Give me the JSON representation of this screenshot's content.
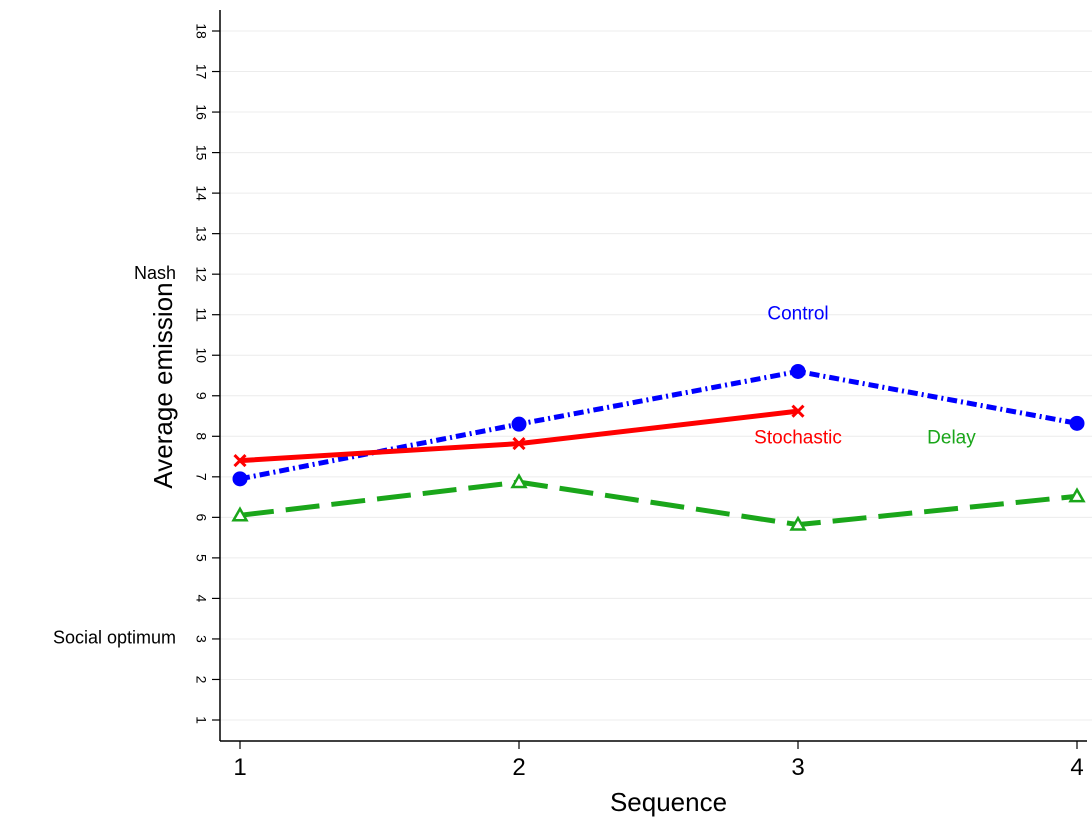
{
  "chart_data": {
    "type": "line",
    "title": "",
    "xlabel": "Sequence",
    "ylabel": "Average emission",
    "x": [
      1,
      2,
      3,
      4
    ],
    "x_tick_labels": [
      "1",
      "2",
      "3",
      "4"
    ],
    "xlim": [
      1,
      4
    ],
    "ylim": [
      0.5,
      18.5
    ],
    "y_ticks": [
      1,
      2,
      3,
      4,
      5,
      6,
      7,
      8,
      9,
      10,
      11,
      12,
      13,
      14,
      15,
      16,
      17,
      18
    ],
    "y_tick_labels": [
      "1",
      "2",
      "3",
      "4",
      "5",
      "6",
      "7",
      "8",
      "9",
      "10",
      "11",
      "12",
      "13",
      "14",
      "15",
      "16",
      "17",
      "18"
    ],
    "grid": true,
    "reference_labels": [
      {
        "text": "Nash",
        "y": 12
      },
      {
        "text": "Social optimum",
        "y": 3
      }
    ],
    "series": [
      {
        "name": "Control",
        "x": [
          1,
          2,
          3,
          4
        ],
        "values": [
          6.95,
          8.3,
          9.6,
          8.32
        ],
        "color": "#0000ff",
        "line_style": "dash-dot",
        "marker": "circle",
        "label_at": [
          3,
          11.0
        ]
      },
      {
        "name": "Stochastic",
        "x": [
          1,
          2,
          3
        ],
        "values": [
          7.4,
          7.82,
          8.62
        ],
        "color": "#ff0000",
        "line_style": "solid",
        "marker": "x",
        "label_at": [
          3,
          7.95
        ]
      },
      {
        "name": "Delay",
        "x": [
          1,
          2,
          3,
          4
        ],
        "values": [
          6.05,
          6.87,
          5.82,
          6.52
        ],
        "color": "#1aa61a",
        "line_style": "long-dash",
        "marker": "triangle",
        "label_at": [
          3.55,
          7.95
        ]
      }
    ]
  }
}
